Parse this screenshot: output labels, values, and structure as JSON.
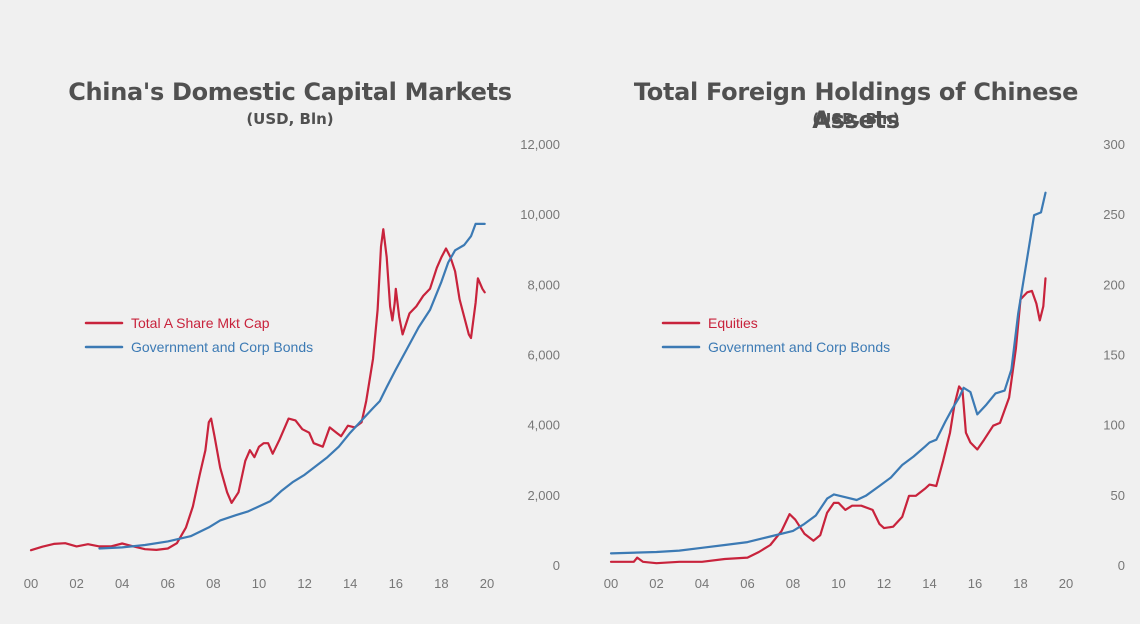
{
  "colors": {
    "red": "#c8233c",
    "blue": "#3c7ab4",
    "tick": "#777777",
    "title": "#505050"
  },
  "chart_data": [
    {
      "type": "line",
      "title": "China's Domestic Capital Markets",
      "subtitle": "(USD, Bln)",
      "x_ticks": [
        "00",
        "02",
        "04",
        "06",
        "08",
        "10",
        "12",
        "14",
        "16",
        "18",
        "20"
      ],
      "y_ticks": [
        "0",
        "2,000",
        "4,000",
        "6,000",
        "8,000",
        "10,000",
        "12,000"
      ],
      "xlim": [
        2000,
        2020
      ],
      "ylim": [
        0,
        12000
      ],
      "legend": "left-middle",
      "grid": false,
      "series": [
        {
          "name": "Total A Share Mkt Cap",
          "color": "#c8233c",
          "points": [
            [
              2000.0,
              450
            ],
            [
              2000.5,
              550
            ],
            [
              2001.0,
              630
            ],
            [
              2001.5,
              650
            ],
            [
              2002.0,
              560
            ],
            [
              2002.5,
              620
            ],
            [
              2003.0,
              560
            ],
            [
              2003.5,
              560
            ],
            [
              2004.0,
              640
            ],
            [
              2004.5,
              560
            ],
            [
              2005.0,
              480
            ],
            [
              2005.5,
              460
            ],
            [
              2006.0,
              500
            ],
            [
              2006.4,
              650
            ],
            [
              2006.8,
              1100
            ],
            [
              2007.1,
              1700
            ],
            [
              2007.4,
              2600
            ],
            [
              2007.65,
              3300
            ],
            [
              2007.8,
              4100
            ],
            [
              2007.9,
              4200
            ],
            [
              2008.05,
              3700
            ],
            [
              2008.3,
              2800
            ],
            [
              2008.6,
              2100
            ],
            [
              2008.8,
              1800
            ],
            [
              2009.1,
              2100
            ],
            [
              2009.4,
              3000
            ],
            [
              2009.6,
              3300
            ],
            [
              2009.8,
              3100
            ],
            [
              2010.0,
              3400
            ],
            [
              2010.2,
              3500
            ],
            [
              2010.4,
              3500
            ],
            [
              2010.6,
              3200
            ],
            [
              2010.9,
              3600
            ],
            [
              2011.3,
              4200
            ],
            [
              2011.6,
              4150
            ],
            [
              2011.9,
              3900
            ],
            [
              2012.2,
              3800
            ],
            [
              2012.4,
              3500
            ],
            [
              2012.8,
              3400
            ],
            [
              2013.1,
              3950
            ],
            [
              2013.4,
              3800
            ],
            [
              2013.6,
              3700
            ],
            [
              2013.9,
              4000
            ],
            [
              2014.2,
              3950
            ],
            [
              2014.5,
              4100
            ],
            [
              2014.7,
              4700
            ],
            [
              2015.0,
              5900
            ],
            [
              2015.2,
              7300
            ],
            [
              2015.35,
              9100
            ],
            [
              2015.45,
              9600
            ],
            [
              2015.6,
              8800
            ],
            [
              2015.75,
              7400
            ],
            [
              2015.85,
              7000
            ],
            [
              2015.95,
              7500
            ],
            [
              2016.0,
              7900
            ],
            [
              2016.15,
              7100
            ],
            [
              2016.3,
              6600
            ],
            [
              2016.6,
              7200
            ],
            [
              2016.9,
              7400
            ],
            [
              2017.2,
              7700
            ],
            [
              2017.5,
              7900
            ],
            [
              2017.8,
              8500
            ],
            [
              2018.0,
              8800
            ],
            [
              2018.2,
              9050
            ],
            [
              2018.4,
              8800
            ],
            [
              2018.6,
              8400
            ],
            [
              2018.8,
              7600
            ],
            [
              2019.0,
              7100
            ],
            [
              2019.2,
              6600
            ],
            [
              2019.3,
              6500
            ],
            [
              2019.5,
              7500
            ],
            [
              2019.6,
              8200
            ],
            [
              2019.8,
              7900
            ],
            [
              2019.9,
              7800
            ]
          ]
        },
        {
          "name": "Government and Corp Bonds",
          "color": "#3c7ab4",
          "points": [
            [
              2003.0,
              500
            ],
            [
              2004.0,
              530
            ],
            [
              2005.0,
              600
            ],
            [
              2006.0,
              700
            ],
            [
              2007.0,
              850
            ],
            [
              2007.8,
              1100
            ],
            [
              2008.3,
              1300
            ],
            [
              2009.0,
              1450
            ],
            [
              2009.5,
              1550
            ],
            [
              2010.0,
              1700
            ],
            [
              2010.5,
              1850
            ],
            [
              2011.0,
              2150
            ],
            [
              2011.5,
              2400
            ],
            [
              2012.0,
              2600
            ],
            [
              2012.5,
              2850
            ],
            [
              2013.0,
              3100
            ],
            [
              2013.5,
              3400
            ],
            [
              2014.0,
              3800
            ],
            [
              2014.5,
              4150
            ],
            [
              2015.0,
              4500
            ],
            [
              2015.3,
              4700
            ],
            [
              2015.6,
              5100
            ],
            [
              2016.0,
              5600
            ],
            [
              2016.5,
              6200
            ],
            [
              2017.0,
              6800
            ],
            [
              2017.5,
              7300
            ],
            [
              2018.0,
              8100
            ],
            [
              2018.3,
              8650
            ],
            [
              2018.6,
              9000
            ],
            [
              2019.0,
              9150
            ],
            [
              2019.3,
              9400
            ],
            [
              2019.5,
              9750
            ],
            [
              2019.9,
              9750
            ]
          ]
        }
      ]
    },
    {
      "type": "line",
      "title": "Total Foreign Holdings of Chinese Assets",
      "subtitle": "(USD, Bln)",
      "x_ticks": [
        "00",
        "02",
        "04",
        "06",
        "08",
        "10",
        "12",
        "14",
        "16",
        "18",
        "20"
      ],
      "y_ticks": [
        "0",
        "50",
        "100",
        "150",
        "200",
        "250",
        "300"
      ],
      "xlim": [
        2000,
        2020
      ],
      "ylim": [
        0,
        300
      ],
      "legend": "left-middle",
      "grid": false,
      "series": [
        {
          "name": "Equities",
          "color": "#c8233c",
          "points": [
            [
              2000.0,
              3
            ],
            [
              2001.0,
              3
            ],
            [
              2001.15,
              6
            ],
            [
              2001.4,
              3
            ],
            [
              2002.0,
              2
            ],
            [
              2003.0,
              3
            ],
            [
              2004.0,
              3
            ],
            [
              2005.0,
              5
            ],
            [
              2006.0,
              6
            ],
            [
              2006.5,
              10
            ],
            [
              2007.0,
              15
            ],
            [
              2007.5,
              25
            ],
            [
              2007.85,
              37
            ],
            [
              2008.1,
              33
            ],
            [
              2008.5,
              23
            ],
            [
              2008.9,
              18
            ],
            [
              2009.2,
              22
            ],
            [
              2009.5,
              38
            ],
            [
              2009.8,
              45
            ],
            [
              2010.0,
              45
            ],
            [
              2010.3,
              40
            ],
            [
              2010.6,
              43
            ],
            [
              2011.0,
              43
            ],
            [
              2011.5,
              40
            ],
            [
              2011.8,
              30
            ],
            [
              2012.0,
              27
            ],
            [
              2012.4,
              28
            ],
            [
              2012.8,
              35
            ],
            [
              2013.1,
              50
            ],
            [
              2013.4,
              50
            ],
            [
              2013.8,
              55
            ],
            [
              2014.0,
              58
            ],
            [
              2014.3,
              57
            ],
            [
              2014.6,
              75
            ],
            [
              2014.9,
              95
            ],
            [
              2015.1,
              115
            ],
            [
              2015.3,
              128
            ],
            [
              2015.45,
              125
            ],
            [
              2015.6,
              95
            ],
            [
              2015.8,
              88
            ],
            [
              2016.1,
              83
            ],
            [
              2016.4,
              90
            ],
            [
              2016.8,
              100
            ],
            [
              2017.1,
              102
            ],
            [
              2017.5,
              120
            ],
            [
              2017.8,
              155
            ],
            [
              2018.0,
              190
            ],
            [
              2018.3,
              195
            ],
            [
              2018.5,
              196
            ],
            [
              2018.7,
              187
            ],
            [
              2018.85,
              175
            ],
            [
              2019.0,
              185
            ],
            [
              2019.1,
              205
            ]
          ]
        },
        {
          "name": "Government and Corp Bonds",
          "color": "#3c7ab4",
          "points": [
            [
              2000.0,
              9
            ],
            [
              2002.0,
              10
            ],
            [
              2003.0,
              11
            ],
            [
              2004.0,
              13
            ],
            [
              2005.0,
              15
            ],
            [
              2006.0,
              17
            ],
            [
              2007.0,
              21
            ],
            [
              2008.0,
              25
            ],
            [
              2008.5,
              30
            ],
            [
              2009.0,
              36
            ],
            [
              2009.5,
              48
            ],
            [
              2009.8,
              51
            ],
            [
              2010.3,
              49
            ],
            [
              2010.8,
              47
            ],
            [
              2011.2,
              50
            ],
            [
              2011.8,
              57
            ],
            [
              2012.3,
              63
            ],
            [
              2012.8,
              72
            ],
            [
              2013.3,
              78
            ],
            [
              2013.8,
              85
            ],
            [
              2014.0,
              88
            ],
            [
              2014.3,
              90
            ],
            [
              2014.7,
              103
            ],
            [
              2015.0,
              112
            ],
            [
              2015.3,
              120
            ],
            [
              2015.5,
              127
            ],
            [
              2015.8,
              124
            ],
            [
              2016.1,
              108
            ],
            [
              2016.5,
              115
            ],
            [
              2016.9,
              123
            ],
            [
              2017.3,
              125
            ],
            [
              2017.6,
              140
            ],
            [
              2017.9,
              180
            ],
            [
              2018.3,
              220
            ],
            [
              2018.6,
              250
            ],
            [
              2018.9,
              252
            ],
            [
              2019.1,
              266
            ]
          ]
        }
      ]
    }
  ]
}
